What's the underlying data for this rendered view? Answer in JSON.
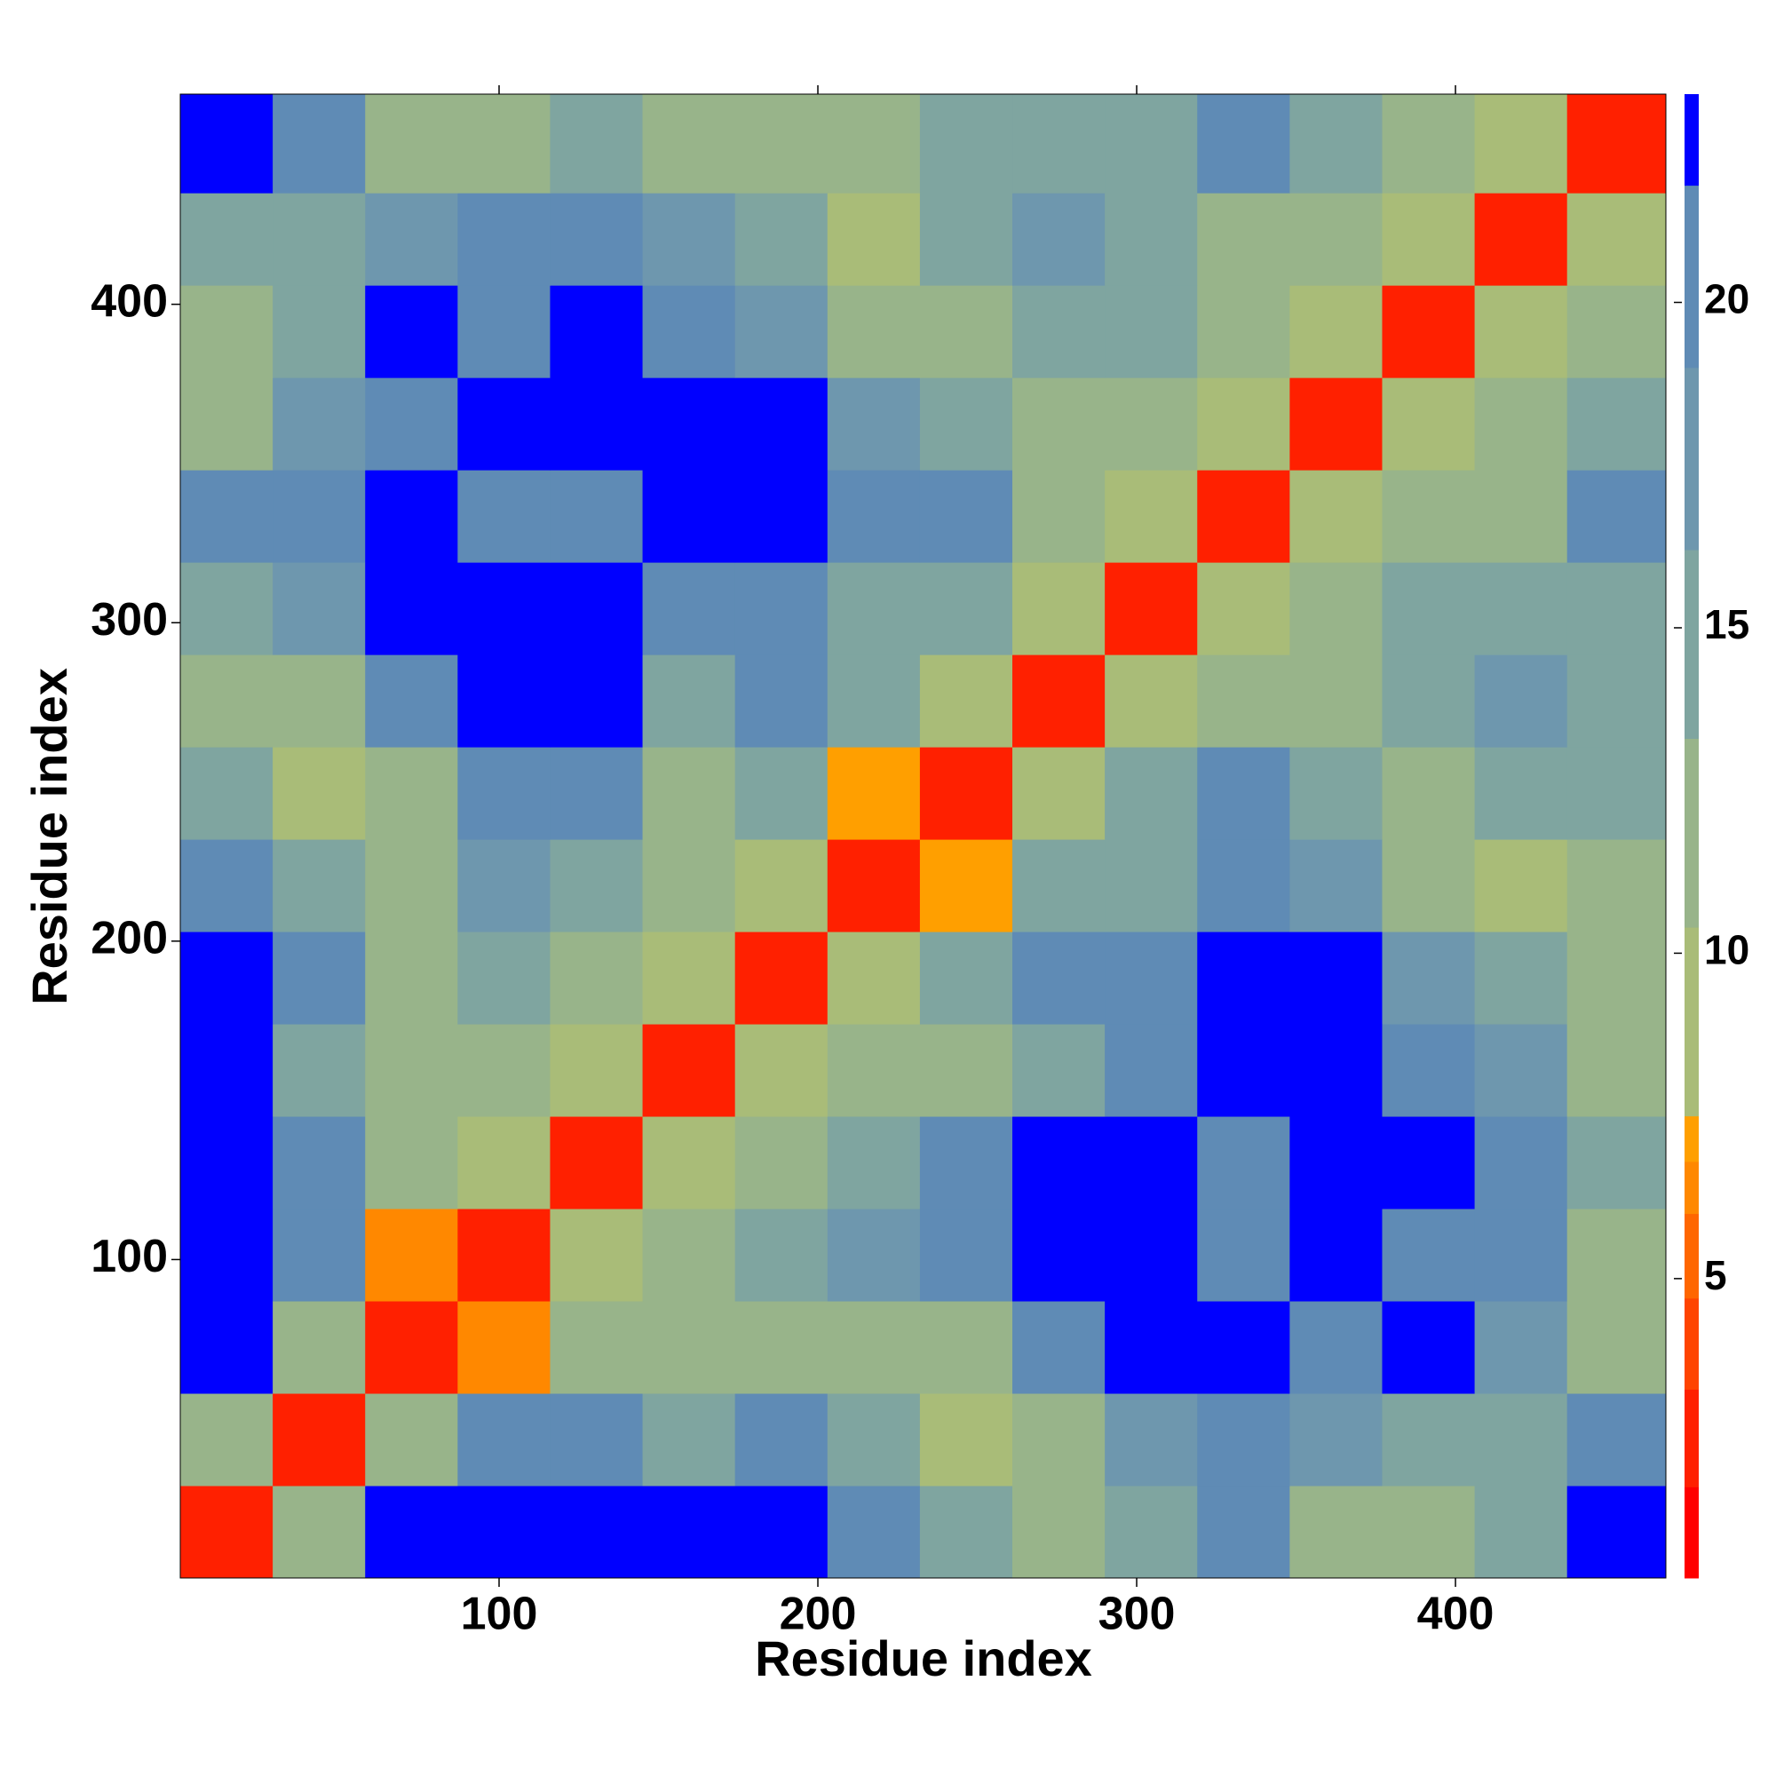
{
  "chart_data": {
    "type": "heatmap",
    "xlabel": "Residue index",
    "ylabel": "Residue index",
    "xlim": [
      0,
      466
    ],
    "ylim": [
      0,
      466
    ],
    "xticks": [
      100,
      200,
      300,
      400
    ],
    "yticks": [
      100,
      200,
      300,
      400
    ],
    "xbins": [
      0,
      29,
      58,
      87,
      116,
      145,
      174,
      203,
      232,
      261,
      290,
      319,
      348,
      377,
      406,
      435,
      466
    ],
    "ybins": [
      0,
      29,
      58,
      87,
      116,
      145,
      174,
      203,
      232,
      261,
      290,
      319,
      348,
      377,
      406,
      435,
      466
    ],
    "z": [
      [
        2,
        12,
        22,
        23,
        23,
        23,
        23,
        21,
        16,
        13,
        14,
        20,
        12,
        11,
        16,
        23
      ],
      [
        12,
        2,
        12,
        21,
        20,
        16,
        21,
        14,
        10,
        12,
        18,
        21,
        18,
        14,
        15,
        20
      ],
      [
        22,
        12,
        2,
        6,
        12,
        11,
        13,
        12,
        12,
        19,
        22,
        22,
        21,
        22,
        18,
        11
      ],
      [
        23,
        21,
        6,
        2,
        10,
        13,
        14,
        18,
        21,
        23,
        23,
        21,
        22,
        20,
        19,
        11
      ],
      [
        23,
        20,
        12,
        10,
        2,
        10,
        11,
        15,
        20,
        23,
        23,
        21,
        23,
        22,
        20,
        15
      ],
      [
        23,
        16,
        11,
        13,
        10,
        2,
        9,
        12,
        13,
        15,
        20,
        23,
        22,
        20,
        18,
        11
      ],
      [
        23,
        21,
        13,
        14,
        11,
        9,
        2,
        9,
        15,
        19,
        21,
        23,
        23,
        18,
        14,
        12
      ],
      [
        21,
        14,
        12,
        18,
        15,
        12,
        9,
        2,
        7,
        14,
        15,
        20,
        17,
        12,
        9,
        11
      ],
      [
        16,
        10,
        12,
        21,
        20,
        13,
        15,
        7,
        2,
        8,
        15,
        20,
        14,
        13,
        14,
        15
      ],
      [
        13,
        12,
        19,
        23,
        23,
        15,
        19,
        14,
        8,
        2,
        8,
        11,
        12,
        16,
        17,
        16
      ],
      [
        14,
        18,
        22,
        23,
        23,
        20,
        21,
        15,
        15,
        8,
        2,
        9,
        11,
        15,
        14,
        15
      ],
      [
        20,
        21,
        22,
        21,
        21,
        23,
        23,
        20,
        20,
        11,
        9,
        2,
        8,
        13,
        13,
        19
      ],
      [
        12,
        18,
        21,
        22,
        23,
        22,
        23,
        17,
        14,
        12,
        11,
        8,
        2,
        9,
        11,
        16
      ],
      [
        11,
        14,
        22,
        20,
        22,
        20,
        18,
        12,
        13,
        16,
        15,
        13,
        9,
        2,
        8,
        11
      ],
      [
        16,
        15,
        18,
        19,
        20,
        18,
        14,
        9,
        14,
        17,
        14,
        13,
        11,
        8,
        2,
        9
      ],
      [
        23,
        20,
        11,
        11,
        15,
        11,
        12,
        11,
        15,
        16,
        15,
        19,
        16,
        11,
        9,
        2
      ]
    ],
    "colorbar": {
      "levels": [
        0.4,
        1.8,
        3.3,
        4.7,
        6,
        6.8,
        7.5,
        10.4,
        13.3,
        16.2,
        19,
        21.8,
        23.2
      ],
      "colors": [
        "#ff0000",
        "#ff2000",
        "#ff4400",
        "#ff6600",
        "#ff8800",
        "#ff9f00",
        "#a9bc78",
        "#98b48a",
        "#7fa5a0",
        "#6e97ae",
        "#5f8bb5",
        "#0000ff"
      ],
      "ticks": [
        5,
        10,
        15,
        20
      ]
    }
  }
}
